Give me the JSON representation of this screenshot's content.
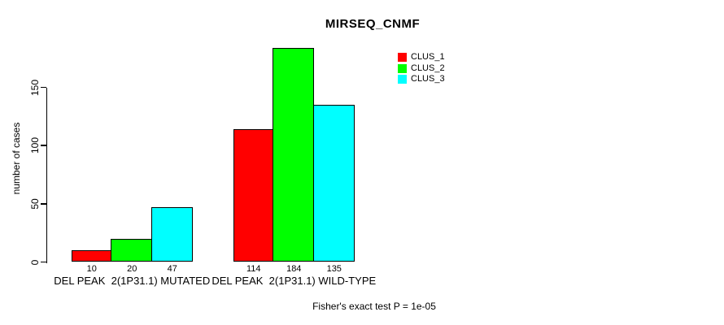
{
  "chart_data": {
    "type": "bar",
    "title": "MIRSEQ_CNMF",
    "ylabel": "number of cases",
    "xlabel": "",
    "footer": "Fisher's exact test P = 1e-05",
    "categories": [
      "DEL PEAK  2(1P31.1) MUTATED",
      "DEL PEAK  2(1P31.1) WILD-TYPE"
    ],
    "series": [
      {
        "name": "CLUS_1",
        "color": "#ff0000",
        "values": [
          10,
          114
        ]
      },
      {
        "name": "CLUS_2",
        "color": "#00ff00",
        "values": [
          20,
          184
        ]
      },
      {
        "name": "CLUS_3",
        "color": "#00ffff",
        "values": [
          47,
          135
        ]
      }
    ],
    "bar_value_labels": [
      [
        10,
        20,
        47
      ],
      [
        114,
        184,
        135
      ]
    ],
    "yticks": [
      0,
      50,
      100,
      150
    ],
    "ylim": [
      0,
      192
    ],
    "grid": false,
    "legend_position": "topright",
    "bar_border_color": "#000000",
    "background_color": "#ffffff"
  }
}
